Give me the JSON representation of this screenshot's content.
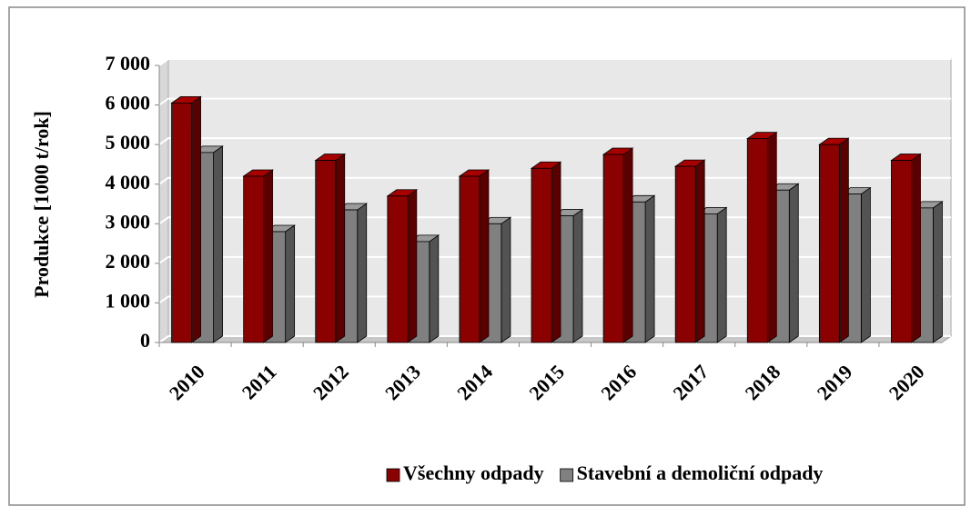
{
  "chart_data": {
    "type": "bar3d",
    "y_label": "Produkce  [1000 t/rok]",
    "categories": [
      "2010",
      "2011",
      "2012",
      "2013",
      "2014",
      "2015",
      "2016",
      "2017",
      "2018",
      "2019",
      "2020"
    ],
    "series": [
      {
        "name": "Všechny odpady",
        "color": "#8b0000",
        "values": [
          6050,
          4200,
          4600,
          3700,
          4200,
          4400,
          4750,
          4450,
          5150,
          5000,
          4600
        ]
      },
      {
        "name": "Stavební a demoliční odpady",
        "color": "#808080",
        "values": [
          4800,
          2800,
          3350,
          2550,
          3000,
          3200,
          3550,
          3250,
          3850,
          3750,
          3400
        ]
      }
    ],
    "ylim": [
      0,
      7000
    ],
    "yticks": [
      0,
      {
        "value": 1000,
        "label": "1 000"
      },
      {
        "value": 2000,
        "label": "2 000"
      },
      {
        "value": 3000,
        "label": "3 000"
      },
      {
        "value": 4000,
        "label": "4 000"
      },
      {
        "value": 5000,
        "label": "5 000"
      },
      {
        "value": 6000,
        "label": "6 000"
      },
      {
        "value": 7000,
        "label": "7 000"
      }
    ],
    "grid": true,
    "legend": "bottom"
  }
}
